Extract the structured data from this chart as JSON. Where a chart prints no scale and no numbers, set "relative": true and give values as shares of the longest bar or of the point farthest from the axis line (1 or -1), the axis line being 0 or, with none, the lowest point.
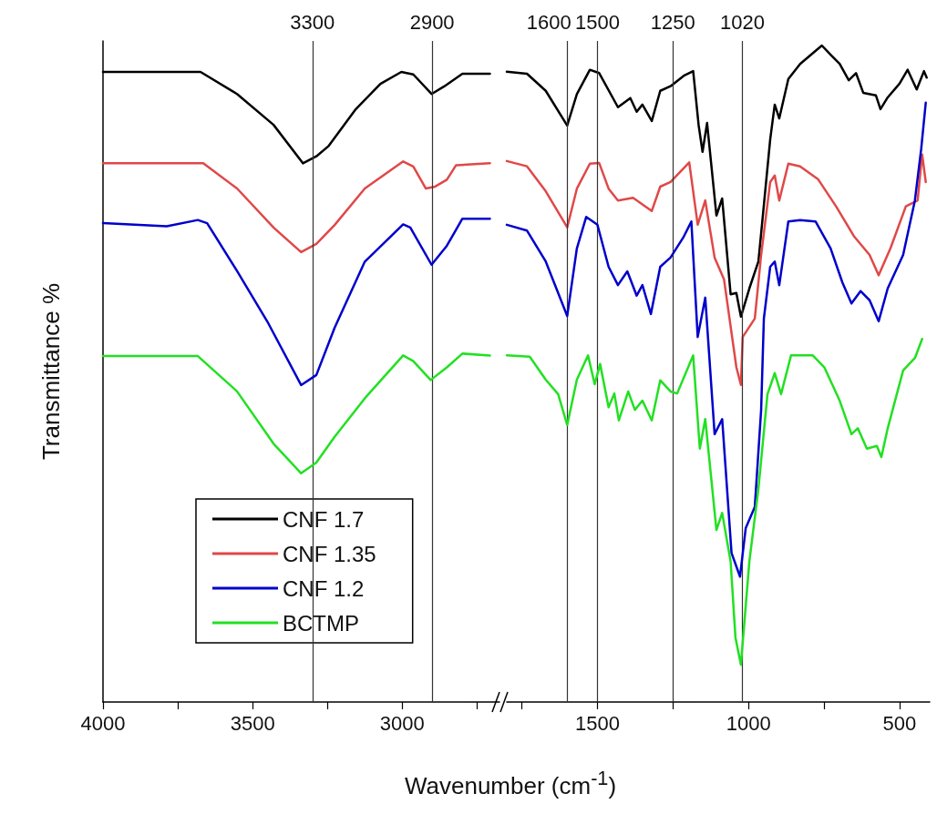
{
  "chart_data": [
    {
      "type": "line",
      "ylabel": "Transmittance %",
      "xlabel": "Wavenumber (cm$^{-1}$)",
      "relative": true,
      "marker": "none",
      "line_style": "solid",
      "legend": "bottom left",
      "tick_labels": "x",
      "xlim": [
        4000,
        2675
      ],
      "xticks": [
        4000,
        {
          "value": 3750,
          "label": null
        },
        3500,
        {
          "value": 3250,
          "label": null
        },
        3000,
        {
          "value": 2750,
          "label": null
        }
      ],
      "ref_lines": [
        {
          "axis": "x",
          "value": 3300,
          "label": "3300"
        },
        {
          "axis": "x",
          "value": 2900,
          "label": "2900"
        }
      ],
      "series": [
        {
          "name": "CNF 1.7",
          "color": "#000000",
          "x": [
            4000,
            3674,
            3552,
            3430,
            3332,
            3287,
            3247,
            3155,
            3073,
            3003,
            2963,
            2902,
            2860,
            2799,
            2707
          ],
          "values": [
            1,
            1,
            0.965,
            0.916,
            0.855,
            0.866,
            0.882,
            0.941,
            0.981,
            1,
            0.996,
            0.965,
            0.977,
            0.997,
            0.997
          ]
        },
        {
          "name": "CNF 1.35",
          "color": "#e04848",
          "x": [
            4000,
            3665,
            3552,
            3430,
            3338,
            3287,
            3226,
            3125,
            2997,
            2963,
            2921,
            2890,
            2851,
            2820,
            2707
          ],
          "values": [
            0.855,
            0.855,
            0.815,
            0.753,
            0.714,
            0.727,
            0.757,
            0.815,
            0.858,
            0.85,
            0.815,
            0.818,
            0.829,
            0.852,
            0.855
          ]
        },
        {
          "name": "CNF 1.2",
          "color": "#0000cc",
          "x": [
            4000,
            3787,
            3683,
            3652,
            3552,
            3451,
            3338,
            3287,
            3226,
            3125,
            2997,
            2973,
            2902,
            2851,
            2799,
            2707
          ],
          "values": [
            0.76,
            0.755,
            0.765,
            0.76,
            0.684,
            0.604,
            0.503,
            0.519,
            0.594,
            0.699,
            0.758,
            0.753,
            0.694,
            0.724,
            0.767,
            0.767
          ]
        },
        {
          "name": "BCTMP",
          "color": "#22e022",
          "x": [
            4000,
            3683,
            3552,
            3430,
            3338,
            3287,
            3226,
            3125,
            2997,
            2963,
            2905,
            2851,
            2799,
            2707
          ],
          "values": [
            0.549,
            0.549,
            0.493,
            0.41,
            0.363,
            0.38,
            0.421,
            0.482,
            0.55,
            0.541,
            0.511,
            0.531,
            0.553,
            0.55
          ]
        }
      ]
    },
    {
      "type": "line",
      "relative": true,
      "marker": "none",
      "line_style": "solid",
      "tick_labels": "x",
      "xlim": [
        1800,
        400
      ],
      "xticks": [
        {
          "value": 1750,
          "label": null
        },
        1500,
        {
          "value": 1250,
          "label": null
        },
        1000,
        {
          "value": 750,
          "label": null
        },
        500
      ],
      "ref_lines": [
        {
          "axis": "x",
          "value": 1600,
          "label": "1600"
        },
        {
          "axis": "x",
          "value": 1500,
          "label": "1500"
        },
        {
          "axis": "x",
          "value": 1250,
          "label": "1250"
        },
        {
          "axis": "x",
          "value": 1020,
          "label": "1020"
        }
      ],
      "series": [
        {
          "color": "#000000",
          "x": [
            1800,
            1733,
            1671,
            1600,
            1568,
            1525,
            1494,
            1432,
            1391,
            1370,
            1351,
            1320,
            1292,
            1258,
            1214,
            1183,
            1165,
            1152,
            1137,
            1106,
            1087,
            1059,
            1040,
            1025,
            997,
            967,
            928,
            913,
            898,
            868,
            829,
            757,
            728,
            698,
            668,
            644,
            620,
            578,
            563,
            539,
            500,
            473,
            443,
            419,
            410
          ],
          "values": [
            0.96,
            0.957,
            0.931,
            0.878,
            0.926,
            0.963,
            0.958,
            0.906,
            0.92,
            0.899,
            0.91,
            0.885,
            0.931,
            0.938,
            0.954,
            0.961,
            0.879,
            0.838,
            0.882,
            0.741,
            0.767,
            0.621,
            0.623,
            0.587,
            0.63,
            0.671,
            0.857,
            0.91,
            0.889,
            0.949,
            0.972,
            1.0,
            0.986,
            0.972,
            0.947,
            0.958,
            0.928,
            0.924,
            0.903,
            0.921,
            0.942,
            0.963,
            0.933,
            0.961,
            0.951
          ]
        },
        {
          "color": "#e04848",
          "x": [
            1800,
            1733,
            1671,
            1600,
            1568,
            1525,
            1494,
            1463,
            1432,
            1382,
            1320,
            1292,
            1258,
            1196,
            1168,
            1143,
            1112,
            1081,
            1040,
            1025,
            1019,
            979,
            958,
            928,
            913,
            898,
            868,
            829,
            769,
            710,
            650,
            599,
            569,
            530,
            479,
            440,
            425,
            413
          ],
          "values": [
            0.824,
            0.816,
            0.778,
            0.723,
            0.782,
            0.82,
            0.821,
            0.782,
            0.764,
            0.768,
            0.748,
            0.785,
            0.792,
            0.822,
            0.727,
            0.764,
            0.677,
            0.644,
            0.51,
            0.483,
            0.556,
            0.584,
            0.681,
            0.792,
            0.802,
            0.764,
            0.82,
            0.816,
            0.796,
            0.755,
            0.709,
            0.681,
            0.65,
            0.691,
            0.755,
            0.764,
            0.834,
            0.792
          ]
        },
        {
          "color": "#0000cc",
          "x": [
            1800,
            1733,
            1671,
            1600,
            1568,
            1537,
            1500,
            1463,
            1432,
            1401,
            1370,
            1351,
            1323,
            1292,
            1258,
            1214,
            1189,
            1168,
            1143,
            1112,
            1087,
            1056,
            1028,
            1009,
            979,
            958,
            949,
            928,
            913,
            898,
            868,
            829,
            778,
            728,
            689,
            659,
            629,
            599,
            569,
            539,
            488,
            449,
            428,
            413
          ],
          "values": [
            0.727,
            0.718,
            0.671,
            0.588,
            0.691,
            0.739,
            0.727,
            0.663,
            0.635,
            0.656,
            0.619,
            0.635,
            0.591,
            0.663,
            0.677,
            0.709,
            0.732,
            0.556,
            0.616,
            0.408,
            0.431,
            0.227,
            0.191,
            0.265,
            0.297,
            0.445,
            0.584,
            0.663,
            0.671,
            0.635,
            0.732,
            0.734,
            0.732,
            0.691,
            0.639,
            0.607,
            0.626,
            0.612,
            0.58,
            0.63,
            0.681,
            0.764,
            0.843,
            0.913
          ]
        },
        {
          "color": "#22e022",
          "x": [
            1800,
            1724,
            1671,
            1630,
            1600,
            1568,
            1531,
            1509,
            1491,
            1463,
            1444,
            1429,
            1398,
            1376,
            1351,
            1320,
            1292,
            1258,
            1236,
            1183,
            1161,
            1143,
            1106,
            1087,
            1059,
            1043,
            1025,
            997,
            967,
            937,
            913,
            892,
            859,
            787,
            749,
            698,
            659,
            638,
            608,
            575,
            560,
            539,
            488,
            449,
            425
          ],
          "values": [
            0.528,
            0.526,
            0.491,
            0.469,
            0.422,
            0.491,
            0.528,
            0.484,
            0.515,
            0.449,
            0.47,
            0.429,
            0.473,
            0.445,
            0.459,
            0.429,
            0.49,
            0.473,
            0.47,
            0.528,
            0.386,
            0.431,
            0.262,
            0.288,
            0.214,
            0.098,
            0.057,
            0.214,
            0.325,
            0.469,
            0.501,
            0.469,
            0.528,
            0.528,
            0.51,
            0.459,
            0.408,
            0.417,
            0.386,
            0.39,
            0.373,
            0.417,
            0.505,
            0.524,
            0.553
          ]
        }
      ]
    }
  ]
}
